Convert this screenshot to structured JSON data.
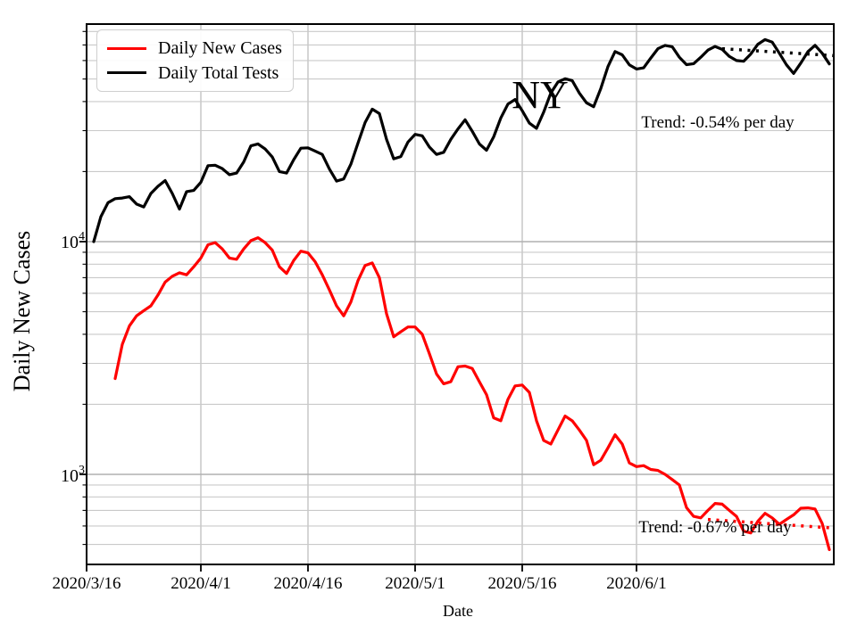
{
  "chart_data": {
    "type": "line",
    "title": "",
    "x_axis": {
      "label": "Date",
      "tick_labels": [
        "2020/3/16",
        "2020/4/1",
        "2020/4/16",
        "2020/5/1",
        "2020/5/16",
        "2020/6/1"
      ],
      "tick_days": [
        0,
        16,
        31,
        46,
        61,
        77
      ],
      "start_date": "2020/3/16",
      "end_date": "2020/6/28",
      "domain_days": [
        0,
        104.7
      ]
    },
    "y_axis": {
      "label": "Daily New Cases",
      "scale": "log",
      "range": [
        413,
        84000
      ],
      "ticks": [
        {
          "base": "10",
          "exp": "4",
          "value": 10000
        },
        {
          "base": "10",
          "exp": "3",
          "value": 1000
        }
      ],
      "grid": true
    },
    "legend": [
      {
        "label": "Daily New Cases",
        "color": "#ff0000"
      },
      {
        "label": "Daily Total Tests",
        "color": "#000000"
      }
    ],
    "annotations": {
      "state": "NY",
      "tests_trend": "Trend: -0.54% per day",
      "cases_trend": "Trend: -0.67% per day"
    },
    "series": [
      {
        "id": "daily-new-cases",
        "name": "Daily New Cases",
        "color": "#ff0000",
        "start_date": "2020/3/20",
        "start_day": 4,
        "values": [
          2580,
          3620,
          4350,
          4800,
          5050,
          5300,
          5900,
          6700,
          7100,
          7350,
          7200,
          7800,
          8500,
          9700,
          9900,
          9300,
          8500,
          8400,
          9300,
          10100,
          10400,
          9900,
          9200,
          7800,
          7300,
          8300,
          9100,
          8950,
          8200,
          7200,
          6200,
          5300,
          4800,
          5500,
          6800,
          7900,
          8100,
          7000,
          4900,
          3900,
          4100,
          4300,
          4300,
          4000,
          3300,
          2700,
          2450,
          2500,
          2900,
          2920,
          2850,
          2500,
          2200,
          1750,
          1700,
          2100,
          2400,
          2420,
          2250,
          1700,
          1400,
          1350,
          1550,
          1780,
          1700,
          1550,
          1400,
          1100,
          1150,
          1300,
          1480,
          1350,
          1120,
          1080,
          1090,
          1050,
          1040,
          1000,
          950,
          900,
          720,
          660,
          650,
          700,
          750,
          745,
          700,
          660,
          570,
          560,
          630,
          680,
          650,
          610,
          640,
          670,
          715,
          718,
          710,
          615,
          475
        ]
      },
      {
        "id": "daily-total-tests",
        "name": "Daily Total Tests",
        "color": "#000000",
        "start_date": "2020/3/17",
        "start_day": 1,
        "values": [
          10000,
          12800,
          14700,
          15300,
          15400,
          15600,
          14500,
          14100,
          16100,
          17300,
          18300,
          16100,
          13800,
          16400,
          16600,
          18000,
          21200,
          21300,
          20600,
          19400,
          19700,
          22000,
          25800,
          26300,
          25000,
          23100,
          20000,
          19700,
          22500,
          25200,
          25300,
          24500,
          23700,
          20500,
          18200,
          18600,
          21500,
          26500,
          32500,
          37100,
          35500,
          27500,
          22700,
          23200,
          26800,
          28900,
          28500,
          25500,
          23700,
          24200,
          27500,
          30500,
          33400,
          29800,
          26300,
          24700,
          28200,
          34000,
          39000,
          40800,
          36500,
          32300,
          30700,
          36000,
          43500,
          48500,
          50100,
          49200,
          43500,
          39500,
          38000,
          45500,
          56500,
          65600,
          63500,
          57500,
          55200,
          55800,
          61500,
          67500,
          69700,
          68800,
          62000,
          57600,
          58200,
          62000,
          66500,
          69000,
          67000,
          62500,
          60000,
          59600,
          64000,
          70500,
          73800,
          72000,
          64500,
          57500,
          52800,
          58500,
          65500,
          69800,
          64500,
          58000
        ]
      }
    ],
    "trend_lines": [
      {
        "id": "tests-trend",
        "color": "#000000",
        "start_day": 89,
        "end_day": 104.6,
        "start_value": 67500,
        "end_value": 63000
      },
      {
        "id": "cases-trend",
        "color": "#ff0000",
        "start_day": 87,
        "end_day": 104.6,
        "start_value": 640,
        "end_value": 588
      }
    ]
  }
}
